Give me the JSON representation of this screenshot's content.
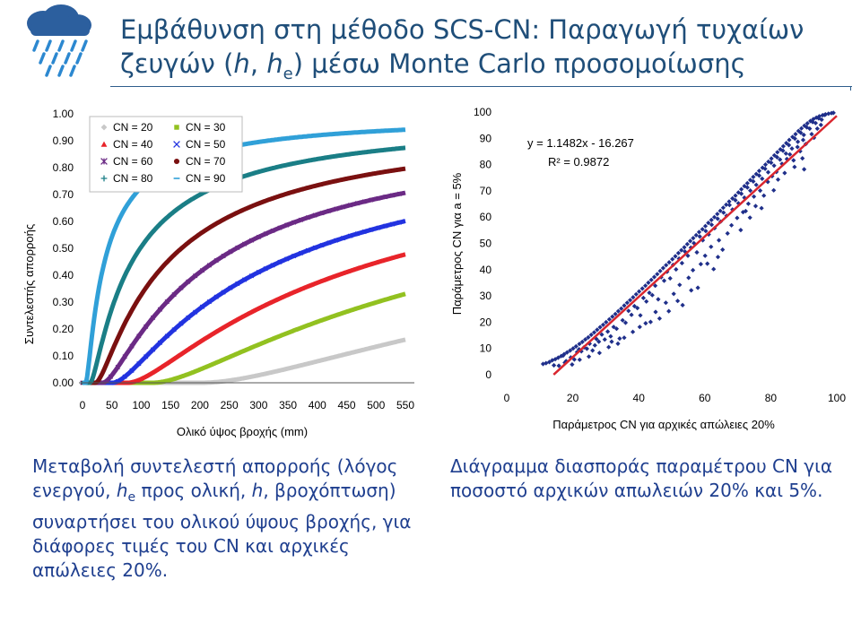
{
  "header": {
    "title_part1": "Εμβάθυνση στη μέθοδο SCS-CN: Παραγωγή τυχαίων",
    "title_part2a": "ζευγών (",
    "title_h": "h",
    "title_part2b": ", ",
    "title_he": "h",
    "title_he_sub": "e",
    "title_part2c": ") μέσω Monte Carlo προσομοίωσης"
  },
  "captions": {
    "left": {
      "part1": "Μεταβολή συντελεστή απορροής (λόγος ενεργού, ",
      "h": "h",
      "sub": "e",
      "part2": " προς ολική, ",
      "h2": "h",
      "part3": ", βροχόπτωση) συναρτήσει του ολικού ύψους βροχής, για διάφορες τιμές του CN και αρχικές απώλειες 20%."
    },
    "right": "Διάγραμμα διασποράς παραμέτρου CN για ποσοστό αρχικών απωλειών 20% και 5%."
  },
  "colors": {
    "title": "#1f4e79",
    "caption": "#1f3f8f",
    "scatter_points": "#1f2f8a",
    "regression_line": "#d9262e"
  },
  "icons": {
    "logo": "cloud-rain-icon"
  },
  "chart_data": [
    {
      "type": "line",
      "title": "",
      "xlabel": "Ολικό ύψος βροχής (mm)",
      "ylabel": "Συντελεστής απορροής",
      "xlim": [
        0,
        550
      ],
      "ylim": [
        0,
        1
      ],
      "x_ticks": [
        "0",
        "50",
        "100",
        "150",
        "200",
        "250",
        "300",
        "350",
        "400",
        "450",
        "500",
        "550"
      ],
      "y_ticks": [
        "0.00",
        "0.10",
        "0.20",
        "0.30",
        "0.40",
        "0.50",
        "0.60",
        "0.70",
        "0.80",
        "0.90",
        "1.00"
      ],
      "grid": false,
      "legend_position": "top-left",
      "series": [
        {
          "name": "CN = 20",
          "cn": 20,
          "color": "#c8c8c8",
          "marker": "diamond"
        },
        {
          "name": "CN = 30",
          "cn": 30,
          "color": "#92c120",
          "marker": "square"
        },
        {
          "name": "CN = 40",
          "cn": 40,
          "color": "#e8242a",
          "marker": "triangle"
        },
        {
          "name": "CN = 50",
          "cn": 50,
          "color": "#2233e0",
          "marker": "x"
        },
        {
          "name": "CN = 60",
          "cn": 60,
          "color": "#6b2a85",
          "marker": "star"
        },
        {
          "name": "CN = 70",
          "cn": 70,
          "color": "#7a1010",
          "marker": "circle"
        },
        {
          "name": "CN = 80",
          "cn": 80,
          "color": "#1a7e86",
          "marker": "plus"
        },
        {
          "name": "CN = 90",
          "cn": 90,
          "color": "#30a0d8",
          "marker": "dash"
        }
      ]
    },
    {
      "type": "scatter",
      "title": "",
      "xlabel": "Παράμετρος CN για αρχικές απώλειες 20%",
      "ylabel": "Παράμετρος CN για a = 5%",
      "xlim": [
        0,
        100
      ],
      "ylim": [
        0,
        100
      ],
      "x_ticks": [
        "0",
        "20",
        "40",
        "60",
        "80",
        "100"
      ],
      "y_ticks": [
        "0",
        "10",
        "20",
        "30",
        "40",
        "50",
        "60",
        "70",
        "80",
        "90",
        "100"
      ],
      "grid": false,
      "trendline": {
        "slope": 1.1482,
        "intercept": -16.267,
        "x_range": [
          14.2,
          100
        ]
      },
      "equation": "y = 1.1482x - 16.267",
      "r2_label": "R² = 0.9872",
      "points": [
        [
          11.0,
          4.1
        ],
        [
          11.9,
          4.4
        ],
        [
          12.9,
          4.8
        ],
        [
          13.8,
          5.5
        ],
        [
          14.7,
          5.9
        ],
        [
          15.6,
          6.5
        ],
        [
          16.5,
          7.1
        ],
        [
          17.4,
          7.8
        ],
        [
          18.3,
          8.5
        ],
        [
          19.2,
          9.2
        ],
        [
          20.1,
          10.0
        ],
        [
          21.0,
          10.8
        ],
        [
          22.0,
          11.7
        ],
        [
          22.9,
          12.5
        ],
        [
          23.8,
          13.4
        ],
        [
          24.7,
          14.2
        ],
        [
          25.6,
          15.2
        ],
        [
          26.5,
          16.1
        ],
        [
          27.4,
          17.1
        ],
        [
          28.3,
          18.1
        ],
        [
          29.2,
          19.0
        ],
        [
          30.1,
          20.0
        ],
        [
          31.1,
          21.1
        ],
        [
          32.0,
          22.1
        ],
        [
          32.9,
          23.1
        ],
        [
          33.8,
          24.2
        ],
        [
          34.7,
          25.2
        ],
        [
          35.6,
          26.3
        ],
        [
          36.5,
          27.4
        ],
        [
          37.4,
          28.4
        ],
        [
          38.3,
          29.5
        ],
        [
          39.2,
          30.6
        ],
        [
          40.1,
          31.7
        ],
        [
          41.1,
          32.8
        ],
        [
          42.0,
          33.9
        ],
        [
          42.9,
          35.0
        ],
        [
          43.8,
          36.1
        ],
        [
          44.7,
          37.2
        ],
        [
          45.6,
          38.3
        ],
        [
          46.5,
          39.5
        ],
        [
          47.4,
          40.6
        ],
        [
          48.3,
          41.7
        ],
        [
          49.2,
          42.8
        ],
        [
          50.2,
          44.0
        ],
        [
          51.1,
          45.1
        ],
        [
          52.0,
          46.3
        ],
        [
          52.9,
          47.4
        ],
        [
          53.8,
          48.5
        ],
        [
          54.7,
          49.7
        ],
        [
          55.6,
          50.9
        ],
        [
          56.5,
          52.0
        ],
        [
          57.4,
          53.1
        ],
        [
          58.3,
          54.3
        ],
        [
          59.3,
          55.4
        ],
        [
          60.2,
          56.6
        ],
        [
          61.1,
          57.8
        ],
        [
          62.0,
          58.9
        ],
        [
          62.9,
          60.0
        ],
        [
          63.8,
          61.2
        ],
        [
          64.7,
          62.4
        ],
        [
          65.6,
          63.6
        ],
        [
          66.5,
          64.7
        ],
        [
          67.4,
          65.9
        ],
        [
          68.4,
          67.1
        ],
        [
          69.3,
          68.2
        ],
        [
          70.2,
          69.4
        ],
        [
          71.1,
          70.6
        ],
        [
          72.0,
          71.8
        ],
        [
          72.9,
          72.9
        ],
        [
          73.8,
          74.1
        ],
        [
          74.7,
          75.3
        ],
        [
          75.6,
          76.4
        ],
        [
          76.5,
          77.6
        ],
        [
          77.5,
          78.8
        ],
        [
          78.4,
          80.0
        ],
        [
          79.3,
          81.1
        ],
        [
          80.2,
          82.3
        ],
        [
          81.1,
          83.5
        ],
        [
          82.0,
          84.7
        ],
        [
          82.9,
          85.8
        ],
        [
          83.8,
          87.0
        ],
        [
          84.7,
          88.2
        ],
        [
          85.6,
          89.4
        ],
        [
          86.6,
          90.5
        ],
        [
          87.5,
          91.6
        ],
        [
          88.4,
          92.8
        ],
        [
          89.3,
          93.8
        ],
        [
          90.2,
          94.8
        ],
        [
          91.1,
          95.7
        ],
        [
          92.0,
          96.6
        ],
        [
          92.9,
          97.3
        ],
        [
          93.8,
          97.9
        ],
        [
          94.7,
          98.4
        ],
        [
          95.7,
          98.8
        ],
        [
          96.6,
          99.1
        ],
        [
          97.5,
          99.4
        ],
        [
          98.4,
          99.6
        ],
        [
          99.0,
          99.7
        ],
        [
          15.8,
          3.4
        ],
        [
          17.1,
          7.3
        ],
        [
          18.0,
          5.2
        ],
        [
          19.4,
          6.6
        ],
        [
          20.5,
          5.8
        ],
        [
          21.3,
          8.6
        ],
        [
          22.6,
          8.9
        ],
        [
          23.4,
          10.4
        ],
        [
          24.3,
          9.9
        ],
        [
          25.1,
          11.8
        ],
        [
          26.0,
          9.2
        ],
        [
          27.2,
          13.6
        ],
        [
          27.9,
          12.6
        ],
        [
          28.8,
          15.3
        ],
        [
          29.7,
          13.4
        ],
        [
          30.6,
          16.4
        ],
        [
          31.5,
          14.6
        ],
        [
          32.4,
          18.2
        ],
        [
          33.3,
          17.5
        ],
        [
          34.2,
          13.8
        ],
        [
          35.1,
          20.7
        ],
        [
          36.0,
          19.8
        ],
        [
          36.9,
          24.3
        ],
        [
          37.8,
          22.8
        ],
        [
          38.7,
          26.1
        ],
        [
          39.6,
          25.4
        ],
        [
          40.5,
          22.6
        ],
        [
          41.4,
          29.2
        ],
        [
          42.3,
          27.9
        ],
        [
          43.2,
          31.2
        ],
        [
          44.1,
          30.3
        ],
        [
          45.0,
          33.9
        ],
        [
          45.9,
          28.7
        ],
        [
          46.8,
          37.1
        ],
        [
          47.7,
          35.8
        ],
        [
          48.6,
          39.2
        ],
        [
          49.5,
          36.7
        ],
        [
          50.4,
          41.8
        ],
        [
          51.3,
          40.1
        ],
        [
          52.2,
          44.2
        ],
        [
          53.1,
          42.5
        ],
        [
          54.0,
          46.9
        ],
        [
          54.9,
          45.3
        ],
        [
          55.8,
          48.4
        ],
        [
          56.7,
          50.1
        ],
        [
          57.6,
          46.6
        ],
        [
          58.5,
          52.6
        ],
        [
          59.4,
          51.2
        ],
        [
          60.3,
          54.7
        ],
        [
          61.2,
          53.4
        ],
        [
          62.1,
          57.1
        ],
        [
          63.0,
          55.8
        ],
        [
          63.9,
          59.4
        ],
        [
          64.8,
          58.3
        ],
        [
          65.7,
          61.7
        ],
        [
          66.6,
          60.5
        ],
        [
          67.5,
          64.6
        ],
        [
          68.4,
          62.9
        ],
        [
          69.3,
          66.4
        ],
        [
          70.2,
          65.3
        ],
        [
          71.1,
          68.9
        ],
        [
          72.0,
          67.4
        ],
        [
          72.9,
          71.3
        ],
        [
          73.8,
          70.1
        ],
        [
          74.7,
          73.6
        ],
        [
          75.6,
          72.3
        ],
        [
          76.5,
          75.8
        ],
        [
          77.4,
          74.6
        ],
        [
          78.3,
          78.4
        ],
        [
          79.2,
          77.1
        ],
        [
          80.1,
          80.7
        ],
        [
          81.0,
          79.6
        ],
        [
          81.9,
          82.8
        ],
        [
          82.8,
          81.9
        ],
        [
          83.7,
          85.3
        ],
        [
          84.6,
          84.2
        ],
        [
          85.5,
          87.4
        ],
        [
          86.4,
          86.1
        ],
        [
          87.3,
          89.9
        ],
        [
          88.2,
          88.7
        ],
        [
          89.1,
          92.1
        ],
        [
          90.0,
          91.3
        ],
        [
          90.9,
          94.2
        ],
        [
          91.8,
          93.7
        ],
        [
          92.7,
          96.2
        ],
        [
          93.6,
          95.8
        ],
        [
          94.5,
          97.6
        ],
        [
          95.4,
          97.1
        ],
        [
          96.3,
          98.9
        ],
        [
          40.3,
          18.2
        ],
        [
          43.6,
          20.1
        ],
        [
          45.1,
          23.9
        ],
        [
          48.2,
          27.4
        ],
        [
          50.6,
          30.8
        ],
        [
          52.4,
          34.2
        ],
        [
          53.3,
          26.5
        ],
        [
          55.1,
          36.9
        ],
        [
          56.4,
          39.8
        ],
        [
          57.9,
          33.1
        ],
        [
          58.8,
          42.1
        ],
        [
          60.1,
          45.3
        ],
        [
          61.9,
          48.7
        ],
        [
          62.7,
          40.2
        ],
        [
          64.3,
          51.2
        ],
        [
          65.4,
          47.6
        ],
        [
          66.9,
          53.8
        ],
        [
          68.1,
          56.9
        ],
        [
          69.8,
          59.7
        ],
        [
          70.9,
          55.1
        ],
        [
          72.4,
          62.3
        ],
        [
          73.2,
          65.1
        ],
        [
          74.9,
          67.8
        ],
        [
          75.4,
          64.2
        ],
        [
          76.8,
          70.1
        ],
        [
          77.9,
          68.2
        ],
        [
          79.1,
          73.4
        ],
        [
          80.4,
          75.6
        ],
        [
          81.7,
          77.2
        ],
        [
          82.2,
          74.3
        ],
        [
          83.4,
          80.3
        ],
        [
          84.9,
          82.1
        ],
        [
          85.8,
          83.9
        ],
        [
          86.9,
          81.6
        ],
        [
          88.1,
          86.7
        ],
        [
          88.9,
          85.1
        ],
        [
          89.8,
          89.4
        ],
        [
          90.6,
          87.8
        ],
        [
          92.4,
          91.6
        ],
        [
          93.1,
          90.2
        ],
        [
          94.1,
          93.7
        ],
        [
          95.2,
          95.1
        ],
        [
          90.1,
          78.2
        ],
        [
          89.6,
          82.4
        ],
        [
          87.2,
          79.1
        ],
        [
          84.2,
          76.8
        ],
        [
          80.9,
          70.2
        ],
        [
          77.2,
          63.4
        ],
        [
          73.7,
          59.8
        ],
        [
          71.6,
          61.9
        ],
        [
          64.0,
          44.8
        ],
        [
          60.8,
          42.3
        ],
        [
          55.9,
          32.1
        ],
        [
          51.8,
          28.1
        ],
        [
          49.1,
          24.2
        ],
        [
          46.3,
          21.4
        ],
        [
          42.1,
          19.6
        ],
        [
          38.2,
          16.3
        ],
        [
          35.6,
          14.1
        ],
        [
          33.7,
          11.8
        ],
        [
          30.9,
          10.5
        ],
        [
          28.1,
          8.3
        ],
        [
          24.9,
          6.9
        ],
        [
          22.1,
          5.7
        ],
        [
          19.8,
          3.9
        ],
        [
          17.6,
          4.6
        ],
        [
          14.3,
          3.6
        ],
        [
          21.9,
          9.7
        ],
        [
          26.7,
          11.2
        ],
        [
          31.8,
          12.6
        ]
      ]
    }
  ]
}
